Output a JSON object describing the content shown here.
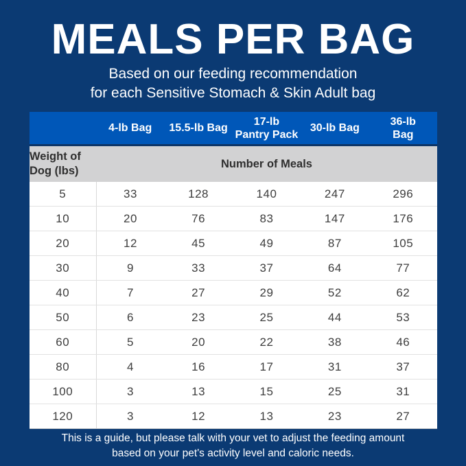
{
  "header": {
    "title": "MEALS PER BAG",
    "subtitle": "Based on our feeding recommendation\nfor each Sensitive Stomach & Skin Adult bag"
  },
  "chart_data": {
    "type": "table",
    "title": "MEALS PER BAG",
    "columns": [
      "",
      "4-lb Bag",
      "15.5-lb Bag",
      "17-lb\nPantry Pack",
      "30-lb Bag",
      "36-lb\nBag"
    ],
    "row_header_label": "Weight of\nDog (lbs)",
    "value_header_label": "Number of Meals",
    "rows": [
      [
        "5",
        "33",
        "128",
        "140",
        "247",
        "296"
      ],
      [
        "10",
        "20",
        "76",
        "83",
        "147",
        "176"
      ],
      [
        "20",
        "12",
        "45",
        "49",
        "87",
        "105"
      ],
      [
        "30",
        "9",
        "33",
        "37",
        "64",
        "77"
      ],
      [
        "40",
        "7",
        "27",
        "29",
        "52",
        "62"
      ],
      [
        "50",
        "6",
        "23",
        "25",
        "44",
        "53"
      ],
      [
        "60",
        "5",
        "20",
        "22",
        "38",
        "46"
      ],
      [
        "80",
        "4",
        "16",
        "17",
        "31",
        "37"
      ],
      [
        "100",
        "3",
        "13",
        "15",
        "25",
        "31"
      ],
      [
        "120",
        "3",
        "12",
        "13",
        "23",
        "27"
      ]
    ]
  },
  "footer": {
    "note": "This is a guide, but please talk with your vet to adjust the feeding amount\nbased on your pet's activity level and caloric needs."
  },
  "colors": {
    "background_navy": "#0b3a73",
    "header_blue": "#0057b8",
    "subheader_gray": "#d2d2d3",
    "body_text": "#3d3d3d",
    "text_white": "#ffffff"
  }
}
